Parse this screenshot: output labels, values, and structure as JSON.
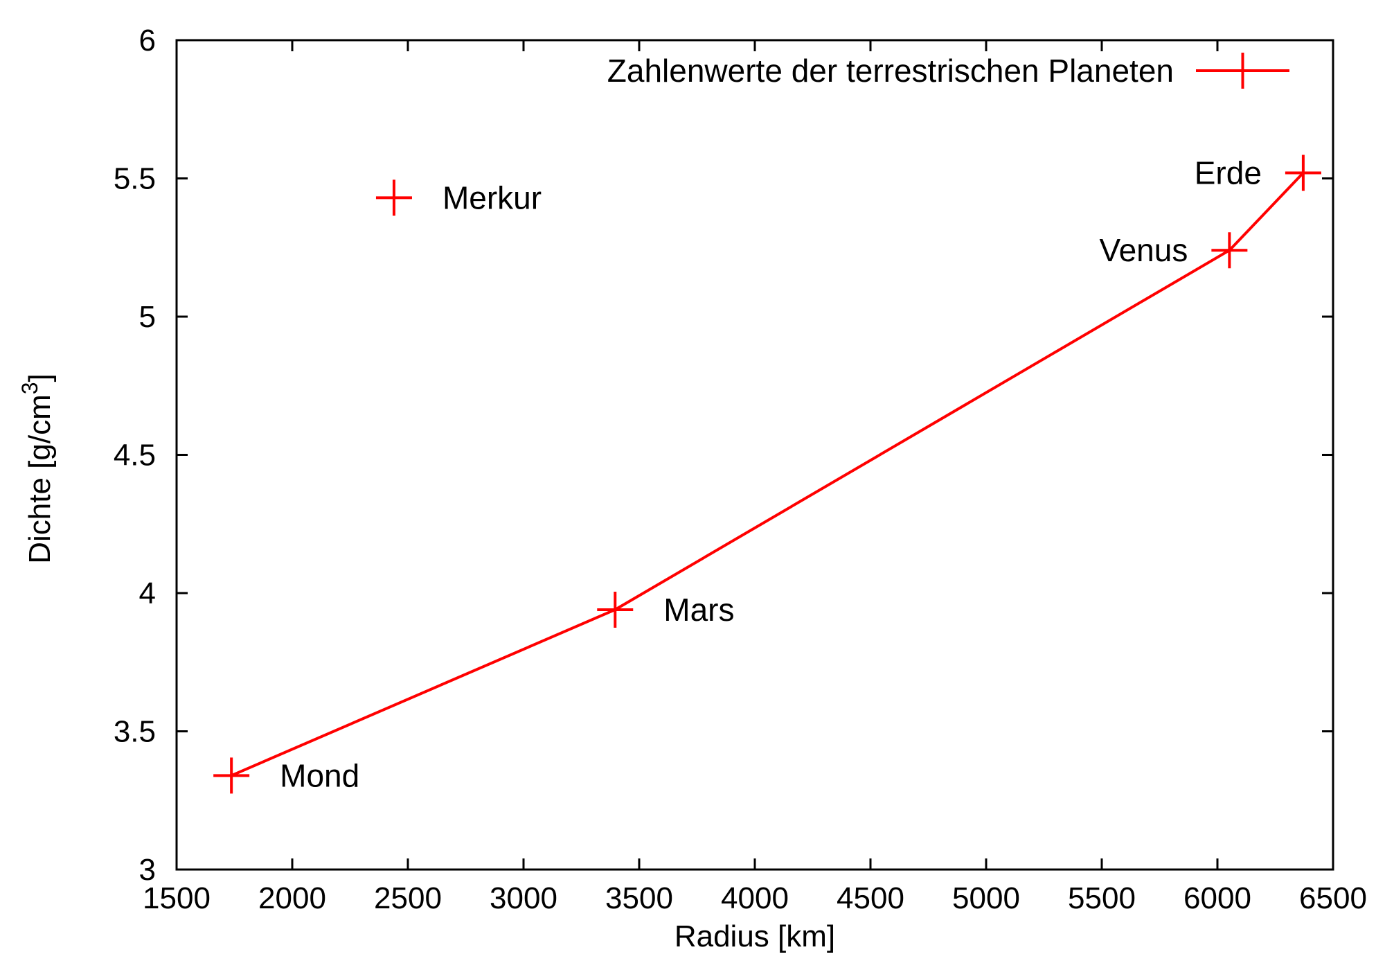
{
  "chart_data": {
    "type": "scatter",
    "xlabel": "Radius [km]",
    "ylabel_main": "Dichte [g/cm",
    "ylabel_sup": "3",
    "ylabel_close": "]",
    "xlim": [
      1500,
      6500
    ],
    "ylim": [
      3,
      6
    ],
    "x_ticks": [
      1500,
      2000,
      2500,
      3000,
      3500,
      4000,
      4500,
      5000,
      5500,
      6000,
      6500
    ],
    "y_ticks": [
      3,
      3.5,
      4,
      4.5,
      5,
      5.5,
      6
    ],
    "x_tick_labels": [
      "1500",
      "2000",
      "2500",
      "3000",
      "3500",
      "4000",
      "4500",
      "5000",
      "5500",
      "6000",
      "6500"
    ],
    "y_tick_labels": [
      "3",
      "3.5",
      "4",
      "4.5",
      "5",
      "5.5",
      "6"
    ],
    "grid": false,
    "legend_position": "top-right",
    "color": "#ff0000",
    "series": [
      {
        "name": "Zahlenwerte der terrestrischen Planeten",
        "marker": "plus",
        "points": [
          {
            "label": "Mond",
            "x": 1737,
            "y": 3.34,
            "connected": true,
            "label_side": "right"
          },
          {
            "label": "Merkur",
            "x": 2440,
            "y": 5.43,
            "connected": false,
            "label_side": "right"
          },
          {
            "label": "Mars",
            "x": 3396,
            "y": 3.94,
            "connected": true,
            "label_side": "right"
          },
          {
            "label": "Venus",
            "x": 6052,
            "y": 5.24,
            "connected": true,
            "label_side": "left"
          },
          {
            "label": "Erde",
            "x": 6371,
            "y": 5.52,
            "connected": true,
            "label_side": "left"
          }
        ]
      }
    ]
  }
}
